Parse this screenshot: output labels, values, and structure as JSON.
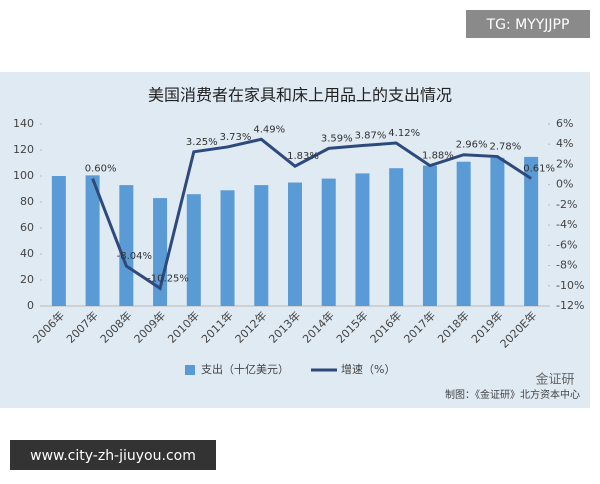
{
  "chart_data": {
    "type": "bar_line",
    "title": "美国消费者在家具和床上用品上的支出情况",
    "categories": [
      "2006年",
      "2007年",
      "2008年",
      "2009年",
      "2010年",
      "2011年",
      "2012年",
      "2013年",
      "2014年",
      "2015年",
      "2016年",
      "2017年",
      "2018年",
      "2019年",
      "2020E年"
    ],
    "series": [
      {
        "name": "支出（十亿美元）",
        "type": "bar",
        "color": "#5b9bd5",
        "values": [
          100,
          100.5,
          93,
          83,
          86,
          89,
          93,
          95,
          98,
          102,
          106,
          108,
          111,
          114,
          114.7
        ]
      },
      {
        "name": "增速（%）",
        "type": "line",
        "axis": "y2",
        "color": "#2e4a7d",
        "values": [
          null,
          0.6,
          -8.04,
          -10.25,
          3.25,
          3.73,
          4.49,
          1.83,
          3.59,
          3.87,
          4.12,
          1.88,
          2.96,
          2.78,
          0.61
        ],
        "value_labels": [
          null,
          "0.60%",
          "-8.04%",
          "-10.25%",
          "3.25%",
          "3.73%",
          "4.49%",
          "1.83%",
          "3.59%",
          "3.87%",
          "4.12%",
          "1.88%",
          "2.96%",
          "2.78%",
          "0.61%"
        ]
      }
    ],
    "ylim": [
      0,
      140
    ],
    "yticks": [
      0,
      20,
      40,
      60,
      80,
      100,
      120,
      140
    ],
    "y2lim": [
      -12,
      6
    ],
    "y2ticks": [
      {
        "value": -12,
        "label": "-12%"
      },
      {
        "value": -10,
        "label": "-10%"
      },
      {
        "value": -8,
        "label": "-8%"
      },
      {
        "value": -6,
        "label": "-6%"
      },
      {
        "value": -4,
        "label": "-4%"
      },
      {
        "value": -2,
        "label": "-2%"
      },
      {
        "value": 0,
        "label": "0%"
      },
      {
        "value": 2,
        "label": "2%"
      },
      {
        "value": 4,
        "label": "4%"
      },
      {
        "value": 6,
        "label": "6%"
      }
    ],
    "legend": "bottom",
    "source": "制图：《金证研》北方资本中心"
  },
  "watermarks": {
    "top": "TG: MYYJJPP",
    "logo": "金证研",
    "bottom": "www.city-zh-jiuyou.com"
  }
}
